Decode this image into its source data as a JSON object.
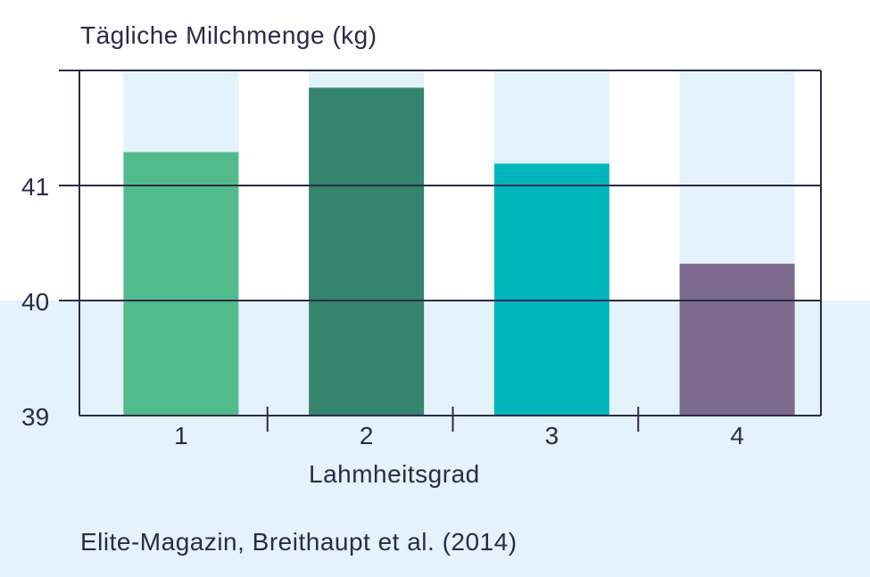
{
  "chart_data": {
    "type": "bar",
    "ylabel": "Tägliche Milchmenge (kg)",
    "xlabel": "Lahmheitsgrad",
    "categories": [
      "1",
      "2",
      "3",
      "4"
    ],
    "values": [
      41.29,
      41.85,
      41.19,
      40.32
    ],
    "ylim": [
      39,
      42
    ],
    "yticks": [
      39,
      40,
      41
    ],
    "grid": true,
    "legend": "none"
  },
  "colors": {
    "bars": [
      "#52bb8c",
      "#34846e",
      "#00b6bd",
      "#7b6a8c"
    ],
    "column_background": "#e3f2fb",
    "axis": "#2b2a4a",
    "band": "#e3f2fb"
  },
  "source": "Elite-Magazin, Breithaupt et al. (2014)"
}
